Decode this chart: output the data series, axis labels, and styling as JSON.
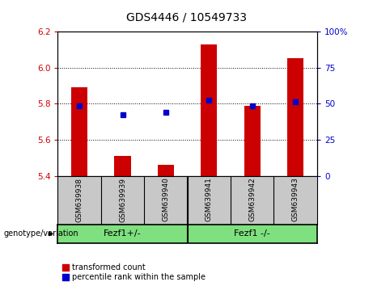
{
  "title": "GDS4446 / 10549733",
  "samples": [
    "GSM639938",
    "GSM639939",
    "GSM639940",
    "GSM639941",
    "GSM639942",
    "GSM639943"
  ],
  "red_values": [
    5.89,
    5.51,
    5.46,
    6.13,
    5.79,
    6.05
  ],
  "blue_values_left": [
    5.79,
    5.74,
    5.75,
    5.82,
    5.79,
    5.81
  ],
  "ylim_left": [
    5.4,
    6.2
  ],
  "ylim_right": [
    0,
    100
  ],
  "yticks_left": [
    5.4,
    5.6,
    5.8,
    6.0,
    6.2
  ],
  "yticks_right": [
    0,
    25,
    50,
    75,
    100
  ],
  "ytick_labels_right": [
    "0",
    "25",
    "50",
    "75",
    "100%"
  ],
  "group1_label": "Fezf1+/-",
  "group2_label": "Fezf1 -/-",
  "group_divider": 2.5,
  "bar_color": "#CC0000",
  "dot_color": "#0000CC",
  "bar_bottom": 5.4,
  "legend_red_label": "transformed count",
  "legend_blue_label": "percentile rank within the sample",
  "genotype_label": "genotype/variation",
  "bg_color": "#FFFFFF",
  "plot_bg_color": "#FFFFFF",
  "tick_color_left": "#CC0000",
  "tick_color_right": "#0000CC",
  "sample_bg_color": "#C8C8C8",
  "group_bg_color": "#7EE07E",
  "title_fontsize": 10,
  "tick_fontsize": 7.5,
  "sample_fontsize": 6.5,
  "group_fontsize": 8,
  "legend_fontsize": 7
}
